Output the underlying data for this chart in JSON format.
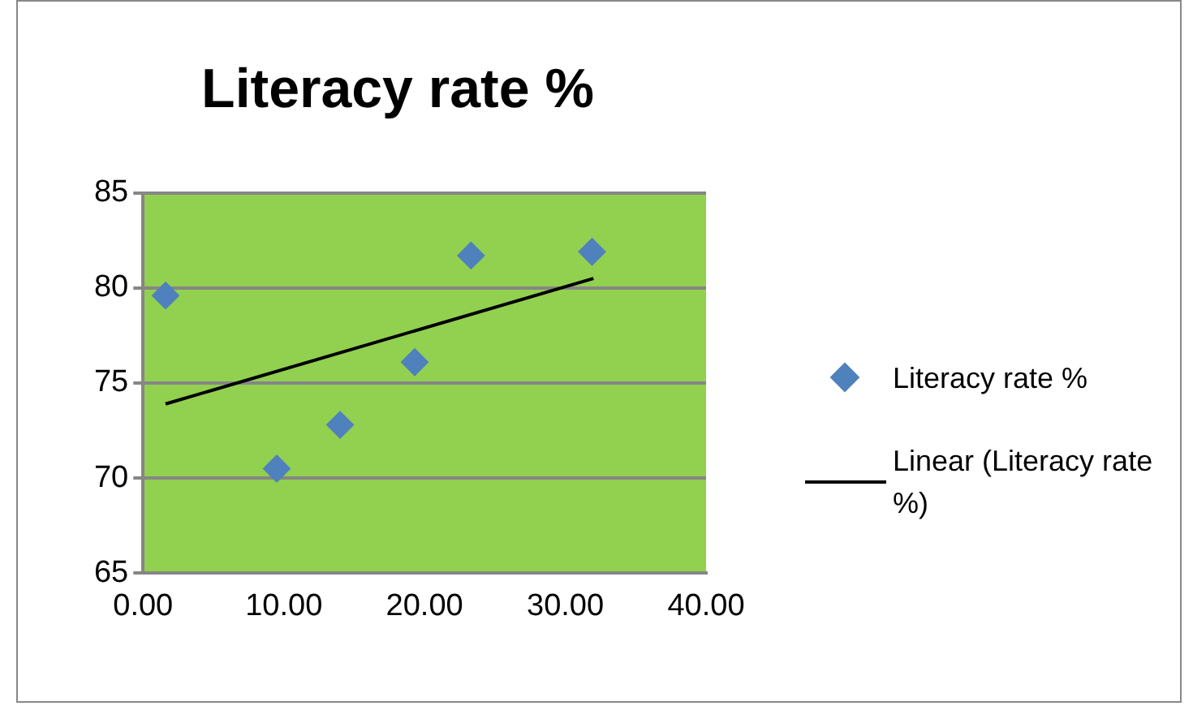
{
  "chart_data": {
    "type": "scatter",
    "title": "Literacy rate %",
    "series": [
      {
        "name": "Literacy rate %",
        "type": "scatter",
        "color": "#4f81bd",
        "x": [
          1.6,
          9.5,
          14.0,
          19.3,
          23.3,
          31.9
        ],
        "values": [
          79.6,
          70.5,
          72.8,
          76.1,
          81.7,
          81.9
        ],
        "marker": "diamond"
      },
      {
        "name": "Linear (Literacy rate %)",
        "type": "line",
        "color": "#000000",
        "x": [
          1.6,
          32.0
        ],
        "values": [
          73.9,
          80.5
        ],
        "marker": "none",
        "line_style": "solid"
      }
    ],
    "xlim": [
      0,
      40
    ],
    "xticks": [
      {
        "value": 0,
        "label": "0.00"
      },
      {
        "value": 10,
        "label": "10.00"
      },
      {
        "value": 20,
        "label": "20.00"
      },
      {
        "value": 30,
        "label": "30.00"
      },
      {
        "value": 40,
        "label": "40.00"
      }
    ],
    "ylim": [
      65,
      85
    ],
    "yticks": [
      65,
      70,
      75,
      80,
      85
    ],
    "grid": "y",
    "legend": "right"
  }
}
